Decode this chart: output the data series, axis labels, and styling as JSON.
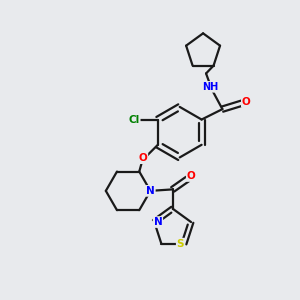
{
  "background_color": "#e8eaed",
  "bond_color": "#1a1a1a",
  "atom_colors": {
    "O": "#ff0000",
    "N": "#0000ff",
    "S": "#cccc00",
    "Cl": "#008000",
    "C": "#1a1a1a"
  },
  "figsize": [
    3.0,
    3.0
  ],
  "dpi": 100
}
